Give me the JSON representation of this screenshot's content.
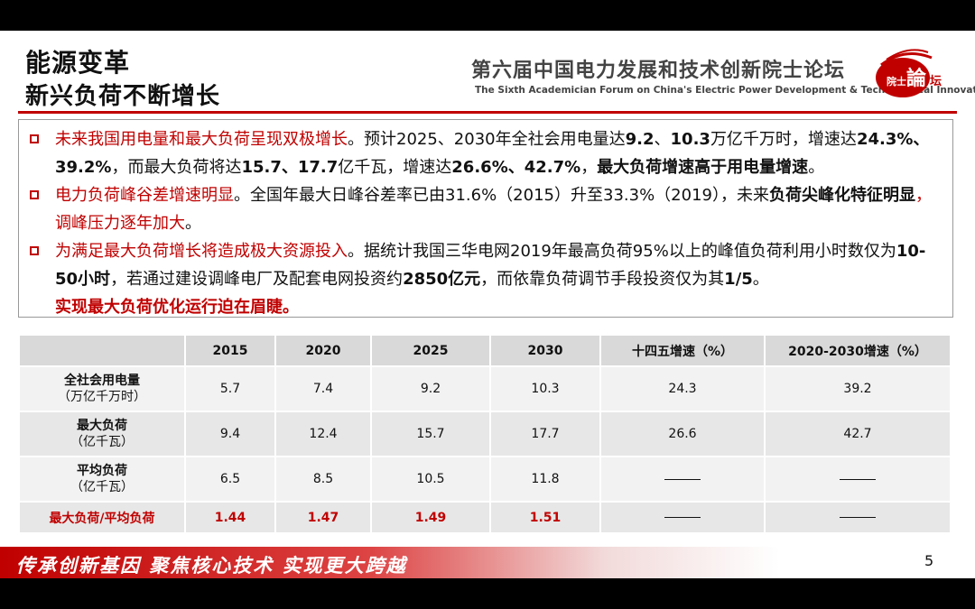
{
  "header": {
    "title_line1": "能源变革",
    "title_line2": "新兴负荷不断增长",
    "forum_cn": "第六届中国电力发展和技术创新院士论坛",
    "forum_en": "The Sixth Academician Forum on China's Electric Power Development & Technological Innovation",
    "logo_text_small": "院士",
    "logo_text_big": "論",
    "logo_text_right": "坛"
  },
  "bullets": [
    {
      "p1_red": "未来我国用电量和最大负荷呈现双极增长",
      "p2": "。预计2025、2030年全社会用电量达",
      "p3_bold": "9.2",
      "p4": "、",
      "p5_bold": "10.3",
      "p6": "万亿千万时，增速达",
      "p7_bold": "24.3%、39.2%",
      "p8": "，而最大负荷将达",
      "p9_bold": "15.7、17.7",
      "p10": "亿千瓦，增速达",
      "p11_bold": "26.6%、42.7%",
      "p12": "，",
      "p13_bold": "最大负荷增速高于用电量增速",
      "p14": "。"
    },
    {
      "p1_red": "电力负荷峰谷差增速明显",
      "p2": "。全国年最大日峰谷差率已由31.6%（2015）升至33.3%（2019），未来",
      "p3_bold": "负荷尖峰化特征明显",
      "p4_red": "，调峰压力逐年加大",
      "p5": "。"
    },
    {
      "p1_red": "为满足最大负荷增长将造成极大资源投入",
      "p2": "。据统计我国三华电网2019年最高负荷95%以上的峰值负荷利用小时数仅为",
      "p3_bold": "10-50小时",
      "p4": "，若通过建设调峰电厂及配套电网投资约",
      "p5_bold": "2850亿元",
      "p6": "，而依靠负荷调节手段投资仅为其",
      "p7_bold": "1/5",
      "p8": "。",
      "p9_redb": "实现最大负荷优化运行迫在眉睫。"
    }
  ],
  "table": {
    "headers": [
      "",
      "2015",
      "2020",
      "2025",
      "2030",
      "十四五增速（%）",
      "2020-2030增速（%）"
    ],
    "rows": [
      {
        "label": "全社会用电量",
        "unit": "（万亿千万时）",
        "cells": [
          "5.7",
          "7.4",
          "9.2",
          "10.3",
          "24.3",
          "39.2"
        ]
      },
      {
        "label": "最大负荷",
        "unit": "（亿千瓦）",
        "cells": [
          "9.4",
          "12.4",
          "15.7",
          "17.7",
          "26.6",
          "42.7"
        ]
      },
      {
        "label": "平均负荷",
        "unit": "（亿千瓦）",
        "cells": [
          "6.5",
          "8.5",
          "10.5",
          "11.8"
        ]
      },
      {
        "label": "最大负荷/平均负荷",
        "cells": [
          "1.44",
          "1.47",
          "1.49",
          "1.51"
        ]
      }
    ]
  },
  "footer": {
    "slogan": "传承创新基因  聚焦核心技术  实现更大跨越",
    "page_number": "5"
  },
  "colors": {
    "accent_red": "#c00000",
    "header_gray": "#d9d9d9"
  }
}
